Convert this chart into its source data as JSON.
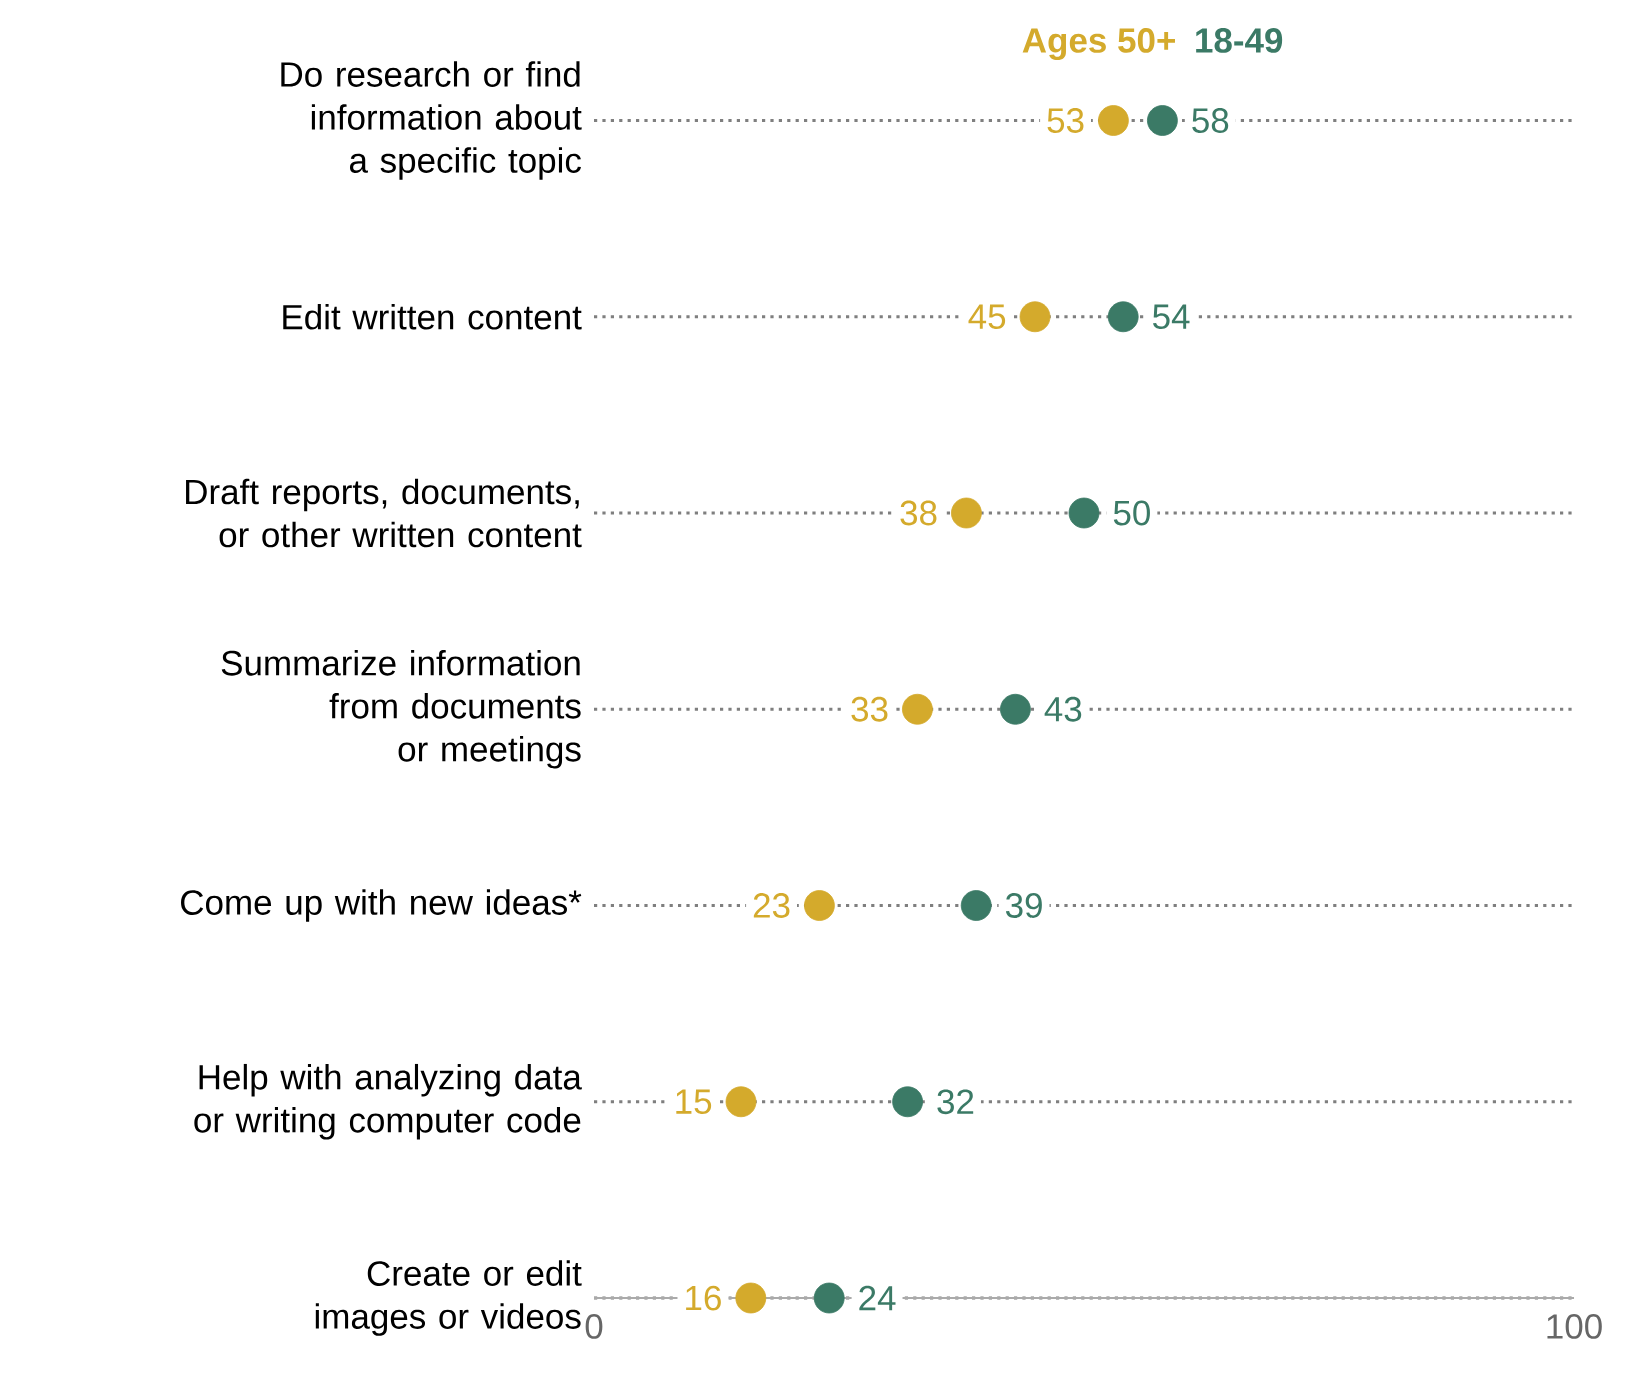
{
  "chart_data": {
    "type": "scatter",
    "orientation": "horizontal",
    "categories": [
      "Do research or find information about a specific topic",
      "Edit written content",
      "Draft reports, documents, or other written content",
      "Summarize information from documents or meetings",
      "Come up with new ideas*",
      "Help with analyzing data or writing computer code",
      "Create or edit images or videos"
    ],
    "series": [
      {
        "name": "Ages 50+",
        "color": "#d4aa2c",
        "values": [
          53,
          45,
          38,
          33,
          23,
          15,
          16
        ]
      },
      {
        "name": "18-49",
        "color": "#3b7a66",
        "values": [
          58,
          54,
          50,
          43,
          39,
          32,
          24
        ]
      }
    ],
    "xlim": [
      0,
      100
    ],
    "xticks": [
      0,
      100
    ],
    "grid": "y",
    "legend": "top",
    "marker": "circle",
    "data_labels": true
  }
}
